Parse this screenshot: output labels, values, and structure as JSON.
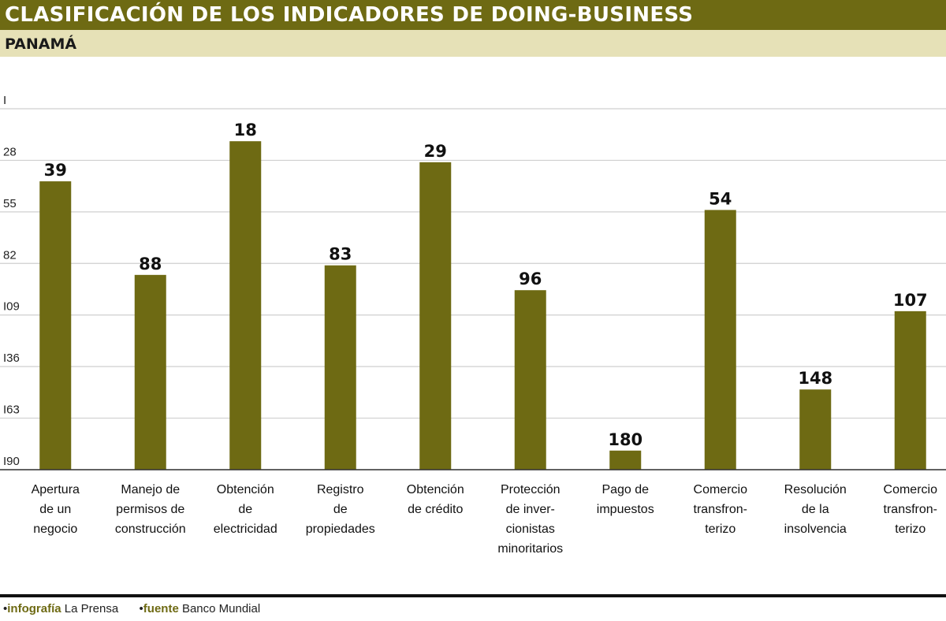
{
  "header": {
    "title": "CLASIFICACIÓN DE LOS INDICADORES DE DOING-BUSINESS",
    "subtitle": "PANAMÁ"
  },
  "colors": {
    "bar": "#6e6a13",
    "header_bg": "#6e6a13",
    "subheader_bg": "#e6e1b7",
    "grid": "#cfcfcf"
  },
  "chart_data": {
    "type": "bar",
    "title": "CLASIFICACIÓN DE LOS INDICADORES DE DOING-BUSINESS",
    "subtitle": "PANAMÁ",
    "categories": [
      "Apertura de un negocio",
      "Manejo de permisos de construcción",
      "Obtención de electricidad",
      "Registro de propiedades",
      "Obtención de crédito",
      "Protección de inversionistas minoritarios",
      "Pago de impuestos",
      "Comercio transfronterizo",
      "Resolución de la insolvencia",
      "Comercio transfronterizo"
    ],
    "category_lines": [
      [
        "Apertura",
        "de un",
        "negocio"
      ],
      [
        "Manejo de",
        "permisos de",
        "construcción"
      ],
      [
        "Obtención",
        "de",
        "electricidad"
      ],
      [
        "Registro",
        "de",
        "propiedades"
      ],
      [
        "Obtención",
        "de crédito"
      ],
      [
        "Protección",
        "de inver-",
        "cionistas",
        "minoritarios"
      ],
      [
        "Pago de",
        "impuestos"
      ],
      [
        "Comercio",
        "transfron-",
        "terizo"
      ],
      [
        "Resolución",
        "de la",
        "insolvencia"
      ],
      [
        "Comercio",
        "transfron-",
        "terizo"
      ]
    ],
    "values": [
      39,
      88,
      18,
      83,
      29,
      96,
      180,
      54,
      148,
      107
    ],
    "y_ticks": [
      1,
      28,
      55,
      82,
      109,
      136,
      163,
      190
    ],
    "y_tick_labels": [
      "I",
      "28",
      "55",
      "82",
      "I09",
      "I36",
      "I63",
      "I90"
    ],
    "ylim": [
      1,
      190
    ],
    "y_inverted": true,
    "grid": true,
    "xlabel": "",
    "ylabel": ""
  },
  "footer": {
    "infografia_tag": "infografía",
    "infografia_value": "La Prensa",
    "fuente_tag": "fuente",
    "fuente_value": "Banco Mundial"
  }
}
